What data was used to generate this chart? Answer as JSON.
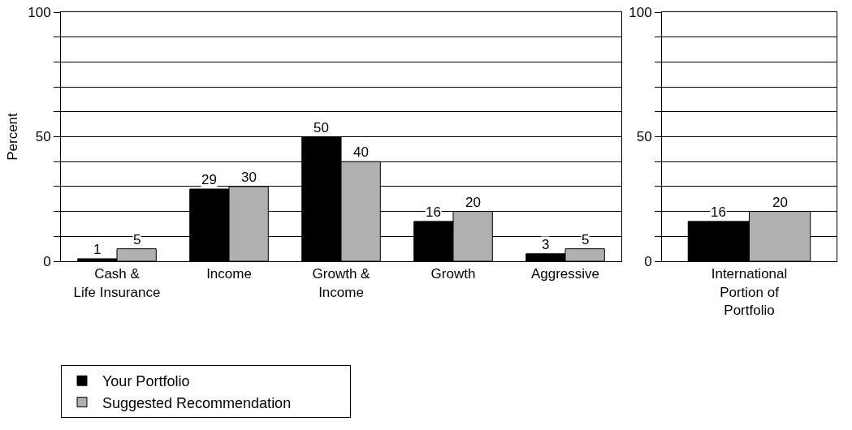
{
  "chart_data": [
    {
      "type": "bar",
      "ylabel": "Percent",
      "categories": [
        "Cash &\nLife Insurance",
        "Income",
        "Growth &\nIncome",
        "Growth",
        "Aggressive"
      ],
      "series": [
        {
          "name": "Your Portfolio",
          "color": "#000000",
          "values": [
            1,
            29,
            50,
            16,
            3
          ]
        },
        {
          "name": "Suggested Recommendation",
          "color": "#b0b0b0",
          "values": [
            5,
            30,
            40,
            20,
            5
          ]
        }
      ],
      "ylim": [
        0,
        100
      ],
      "yticks": [
        0,
        {
          "value": 10,
          "label": null
        },
        {
          "value": 20,
          "label": null
        },
        {
          "value": 30,
          "label": null
        },
        {
          "value": 40,
          "label": null
        },
        50,
        {
          "value": 60,
          "label": null
        },
        {
          "value": 70,
          "label": null
        },
        {
          "value": 80,
          "label": null
        },
        {
          "value": 90,
          "label": null
        },
        100
      ],
      "grid": "y",
      "legend": "bottom",
      "data_labels": true
    },
    {
      "type": "bar",
      "categories": [
        "International\nPortion of\nPortfolio"
      ],
      "series": [
        {
          "color": "#000000",
          "values": [
            16
          ]
        },
        {
          "color": "#b0b0b0",
          "values": [
            20
          ]
        }
      ],
      "ylim": [
        0,
        100
      ],
      "yticks": [
        0,
        {
          "value": 10,
          "label": null
        },
        {
          "value": 20,
          "label": null
        },
        {
          "value": 30,
          "label": null
        },
        {
          "value": 40,
          "label": null
        },
        50,
        {
          "value": 60,
          "label": null
        },
        {
          "value": 70,
          "label": null
        },
        {
          "value": 80,
          "label": null
        },
        {
          "value": 90,
          "label": null
        },
        100
      ],
      "grid": "y",
      "data_labels": true
    }
  ]
}
